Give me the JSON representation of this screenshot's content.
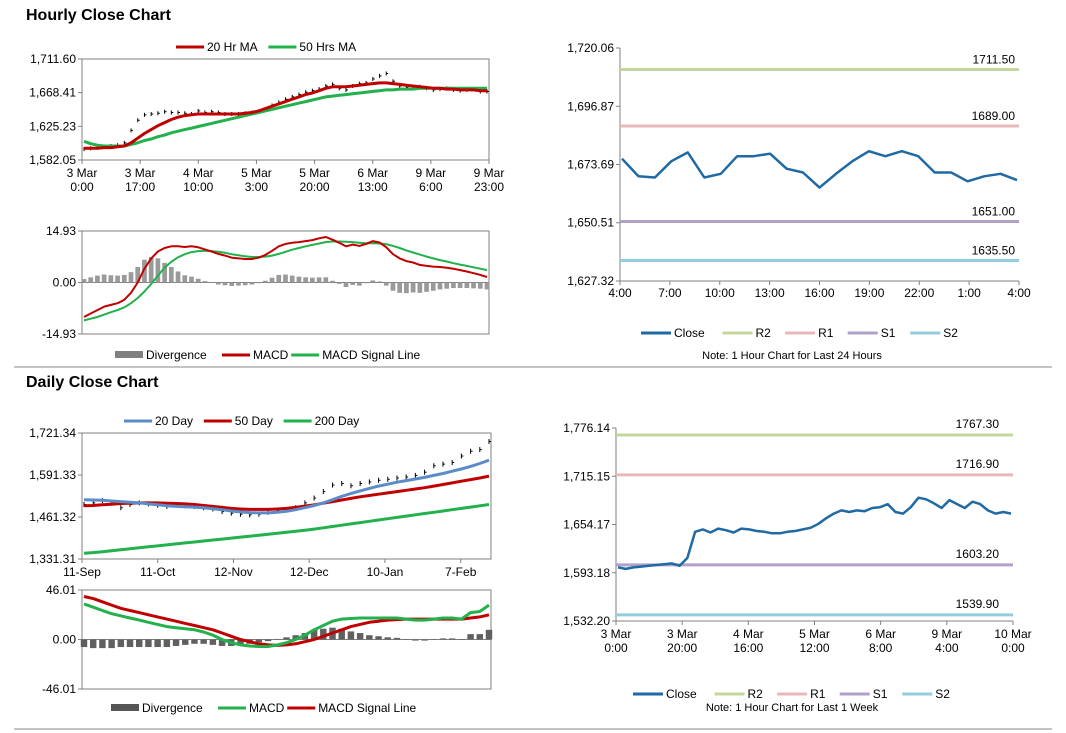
{
  "sections": {
    "hourly_title": "Hourly Close Chart",
    "daily_title": "Daily Close Chart"
  },
  "chart_data": [
    {
      "id": "hourly-price",
      "type": "line",
      "legend": [
        {
          "name": "20 Hr MA",
          "color": "#c00000"
        },
        {
          "name": "50 Hrs MA",
          "color": "#22b14c"
        }
      ],
      "yticks": [
        "1,711.60",
        "1,668.41",
        "1,625.23",
        "1,582.05"
      ],
      "ylim": [
        1582.05,
        1711.6
      ],
      "xticks": [
        [
          "3 Mar",
          "0:00"
        ],
        [
          "3 Mar",
          "17:00"
        ],
        [
          "4 Mar",
          "10:00"
        ],
        [
          "5 Mar",
          "3:00"
        ],
        [
          "5 Mar",
          "20:00"
        ],
        [
          "6 Mar",
          "13:00"
        ],
        [
          "9 Mar",
          "6:00"
        ],
        [
          "9 Mar",
          "23:00"
        ]
      ],
      "close": [
        1596,
        1597,
        1598,
        1599,
        1600,
        1601,
        1604,
        1620,
        1633,
        1640,
        1641,
        1642,
        1644,
        1643,
        1643,
        1642,
        1641,
        1645,
        1643,
        1644,
        1643,
        1641,
        1641,
        1641,
        1642,
        1643,
        1644,
        1646,
        1652,
        1656,
        1660,
        1663,
        1666,
        1669,
        1671,
        1673,
        1677,
        1679,
        1674,
        1672,
        1677,
        1680,
        1681,
        1686,
        1690,
        1693,
        1683,
        1677,
        1675,
        1674,
        1676,
        1674,
        1672,
        1673,
        1674,
        1672,
        1671,
        1672,
        1673,
        1670,
        1670
      ],
      "ma20": [
        1597,
        1597,
        1597,
        1598,
        1598,
        1599,
        1600,
        1604,
        1610,
        1616,
        1621,
        1626,
        1630,
        1634,
        1637,
        1639,
        1640,
        1641,
        1641,
        1641,
        1641,
        1641,
        1641,
        1641,
        1642,
        1643,
        1645,
        1648,
        1651,
        1654,
        1657,
        1660,
        1663,
        1666,
        1668,
        1671,
        1674,
        1676,
        1676,
        1676,
        1677,
        1678,
        1679,
        1680,
        1681,
        1681,
        1680,
        1679,
        1678,
        1677,
        1676,
        1675,
        1674,
        1674,
        1673,
        1673,
        1672,
        1672,
        1672,
        1671,
        1671
      ],
      "ma50": [
        1606,
        1603,
        1601,
        1600,
        1600,
        1600,
        1600,
        1602,
        1604,
        1607,
        1609,
        1612,
        1614,
        1617,
        1619,
        1621,
        1623,
        1625,
        1627,
        1629,
        1631,
        1633,
        1635,
        1637,
        1639,
        1641,
        1643,
        1645,
        1647,
        1649,
        1651,
        1653,
        1655,
        1657,
        1659,
        1661,
        1663,
        1664,
        1665,
        1666,
        1667,
        1668,
        1669,
        1670,
        1671,
        1672,
        1672,
        1673,
        1673,
        1673,
        1674,
        1674,
        1674,
        1674,
        1674,
        1674,
        1674,
        1674,
        1674,
        1674,
        1674
      ]
    },
    {
      "id": "hourly-macd",
      "type": "line",
      "legend": [
        {
          "name": "Divergence",
          "color": "#808080"
        },
        {
          "name": "MACD",
          "color": "#c00000"
        },
        {
          "name": "MACD Signal Line",
          "color": "#22b14c"
        }
      ],
      "yticks": [
        "14.93",
        "0.00",
        "-14.93"
      ],
      "ylim": [
        -14.93,
        14.93
      ],
      "macd": [
        -10,
        -9,
        -8,
        -7,
        -6.5,
        -6,
        -5,
        -3,
        0,
        4,
        7,
        9,
        10,
        10.5,
        10.5,
        10.3,
        10.5,
        10.2,
        9.6,
        9,
        8.3,
        7.8,
        7.2,
        7,
        6.8,
        6.8,
        7.2,
        8,
        9.2,
        10.5,
        11.2,
        11.5,
        11.7,
        12,
        12.3,
        12.8,
        13.2,
        12.4,
        11.5,
        10.5,
        11,
        10.6,
        11.2,
        12,
        11.6,
        10.2,
        8.2,
        7,
        6.2,
        5.8,
        5.1,
        4.8,
        4.6,
        4.5,
        4.3,
        4,
        3.6,
        3.2,
        2.7,
        2.2,
        1.6
      ],
      "signal": [
        -11,
        -10.5,
        -10,
        -9.3,
        -8.6,
        -8,
        -7.2,
        -6,
        -4.5,
        -2.6,
        -0.4,
        2,
        4.3,
        6,
        7.3,
        8.2,
        8.8,
        9.1,
        9.2,
        9.1,
        8.9,
        8.6,
        8.2,
        7.9,
        7.6,
        7.4,
        7.4,
        7.5,
        7.8,
        8.3,
        8.9,
        9.5,
        10,
        10.5,
        10.9,
        11.3,
        11.7,
        11.9,
        11.9,
        11.8,
        11.7,
        11.5,
        11.4,
        11.4,
        11.3,
        11.1,
        10.6,
        10,
        9.3,
        8.7,
        8.1,
        7.5,
        7,
        6.5,
        6.1,
        5.6,
        5.2,
        4.8,
        4.4,
        4,
        3.6
      ],
      "divergence_visible": true
    },
    {
      "id": "hourly-levels",
      "type": "line",
      "yticks": [
        "1,720.06",
        "1,696.87",
        "1,673.69",
        "1,650.51",
        "1,627.32"
      ],
      "ylim": [
        1627.32,
        1720.06
      ],
      "xticks": [
        "4:00",
        "7:00",
        "10:00",
        "13:00",
        "16:00",
        "19:00",
        "22:00",
        "1:00",
        "4:00"
      ],
      "close": [
        1676,
        1669,
        1668.5,
        1675,
        1678.5,
        1668.5,
        1670,
        1677,
        1677,
        1678,
        1672,
        1670.5,
        1664.5,
        1670,
        1675,
        1679,
        1677,
        1679,
        1677,
        1670.5,
        1670.5,
        1667,
        1669,
        1670,
        1667.5
      ],
      "levels": [
        {
          "name": "R2",
          "value": 1711.5,
          "label": "1711.50",
          "color": "#c4d79b"
        },
        {
          "name": "R1",
          "value": 1689.0,
          "label": "1689.00",
          "color": "#e6b9b8"
        },
        {
          "name": "S1",
          "value": 1651.0,
          "label": "1651.00",
          "color": "#b1a0c7"
        },
        {
          "name": "S2",
          "value": 1635.5,
          "label": "1635.50",
          "color": "#93cddd"
        }
      ],
      "legend": [
        {
          "name": "Close",
          "color": "#1f6aa5"
        },
        {
          "name": "R2",
          "color": "#c4d79b"
        },
        {
          "name": "R1",
          "color": "#e6b9b8"
        },
        {
          "name": "S1",
          "color": "#b1a0c7"
        },
        {
          "name": "S2",
          "color": "#93cddd"
        }
      ],
      "note": "Note: 1 Hour Chart for Last 24 Hours"
    },
    {
      "id": "daily-price",
      "type": "line",
      "legend": [
        {
          "name": "20 Day",
          "color": "#5b8cc8"
        },
        {
          "name": "50 Day",
          "color": "#c00000"
        },
        {
          "name": "200 Day",
          "color": "#22b14c"
        }
      ],
      "yticks": [
        "1,721.34",
        "1,591.33",
        "1,461.32",
        "1,331.31"
      ],
      "ylim": [
        1331.31,
        1721.34
      ],
      "xticks": [
        "11-Sep",
        "11-Oct",
        "12-Nov",
        "12-Dec",
        "10-Jan",
        "7-Feb"
      ],
      "close": [
        1500,
        1505,
        1512,
        1505,
        1490,
        1500,
        1505,
        1502,
        1498,
        1494,
        1500,
        1496,
        1494,
        1490,
        1486,
        1478,
        1473,
        1470,
        1468,
        1470,
        1476,
        1480,
        1484,
        1490,
        1505,
        1520,
        1540,
        1560,
        1565,
        1558,
        1565,
        1570,
        1575,
        1578,
        1582,
        1585,
        1590,
        1600,
        1620,
        1625,
        1630,
        1650,
        1665,
        1670,
        1695
      ],
      "ma20": [
        1515,
        1514,
        1513,
        1511,
        1509,
        1507,
        1505,
        1502,
        1499,
        1496,
        1494,
        1493,
        1492,
        1490,
        1487,
        1484,
        1480,
        1477,
        1475,
        1474,
        1474,
        1476,
        1479,
        1484,
        1490,
        1497,
        1505,
        1515,
        1525,
        1534,
        1542,
        1550,
        1557,
        1563,
        1569,
        1574,
        1579,
        1584,
        1590,
        1596,
        1603,
        1610,
        1618,
        1627,
        1637
      ],
      "ma50": [
        1496,
        1497,
        1499,
        1501,
        1503,
        1504,
        1505,
        1505,
        1505,
        1504,
        1503,
        1502,
        1500,
        1497,
        1494,
        1491,
        1488,
        1486,
        1485,
        1485,
        1485,
        1486,
        1488,
        1491,
        1495,
        1499,
        1504,
        1509,
        1514,
        1519,
        1524,
        1528,
        1532,
        1536,
        1540,
        1544,
        1548,
        1552,
        1557,
        1562,
        1567,
        1572,
        1577,
        1582,
        1588
      ],
      "ma200": [
        1349,
        1351,
        1354,
        1357,
        1360,
        1363,
        1366,
        1369,
        1372,
        1375,
        1378,
        1381,
        1384,
        1387,
        1390,
        1393,
        1396,
        1399,
        1402,
        1405,
        1408,
        1411,
        1414,
        1417,
        1420,
        1424,
        1428,
        1432,
        1436,
        1440,
        1444,
        1448,
        1452,
        1456,
        1460,
        1464,
        1468,
        1472,
        1476,
        1480,
        1484,
        1488,
        1492,
        1496,
        1500
      ]
    },
    {
      "id": "daily-macd",
      "type": "line",
      "legend": [
        {
          "name": "Divergence",
          "color": "#555555"
        },
        {
          "name": "MACD",
          "color": "#22b14c"
        },
        {
          "name": "MACD Signal Line",
          "color": "#c00000"
        }
      ],
      "yticks": [
        "46.01",
        "0.00",
        "-46.01"
      ],
      "ylim": [
        -46.01,
        46.01
      ],
      "macd": [
        33,
        30,
        27,
        24,
        22,
        20,
        18,
        16,
        14,
        12,
        11,
        10,
        9,
        7,
        4,
        0,
        -3,
        -5,
        -6,
        -6.5,
        -6.5,
        -5,
        -3,
        0,
        4,
        9,
        13,
        17,
        19,
        19.5,
        20,
        20,
        20,
        20,
        20,
        19,
        18,
        18,
        19,
        20,
        20,
        19,
        25,
        26,
        32
      ],
      "signal": [
        40,
        38,
        35,
        32,
        29,
        27,
        25,
        23,
        21,
        19,
        17,
        15,
        13,
        11,
        9,
        6,
        3,
        0,
        -2,
        -4,
        -5,
        -5.5,
        -5,
        -4,
        -2,
        0,
        3,
        6,
        9,
        12,
        14,
        16,
        17,
        18,
        18.5,
        19,
        19,
        19,
        19,
        19,
        19,
        19,
        20,
        21,
        23
      ],
      "divergence_visible": true
    },
    {
      "id": "daily-levels",
      "type": "line",
      "yticks": [
        "1,776.14",
        "1,715.15",
        "1,654.17",
        "1,593.18",
        "1,532.20"
      ],
      "ylim": [
        1532.2,
        1776.14
      ],
      "xticks": [
        [
          "3 Mar",
          "0:00"
        ],
        [
          "3 Mar",
          "20:00"
        ],
        [
          "4 Mar",
          "16:00"
        ],
        [
          "5 Mar",
          "12:00"
        ],
        [
          "6 Mar",
          "8:00"
        ],
        [
          "9 Mar",
          "4:00"
        ],
        [
          "10 Mar",
          "0:00"
        ]
      ],
      "close": [
        1600,
        1598,
        1600,
        1601,
        1602,
        1603,
        1604,
        1605,
        1602,
        1612,
        1645,
        1648,
        1644,
        1649,
        1647,
        1644,
        1649,
        1648,
        1646,
        1645,
        1643,
        1643,
        1645,
        1646,
        1648,
        1650,
        1655,
        1662,
        1668,
        1672,
        1670,
        1672,
        1671,
        1675,
        1676,
        1680,
        1670,
        1668,
        1676,
        1688,
        1686,
        1681,
        1675,
        1685,
        1680,
        1675,
        1683,
        1680,
        1672,
        1668,
        1670,
        1668
      ],
      "levels": [
        {
          "name": "R2",
          "value": 1767.3,
          "label": "1767.30",
          "color": "#c4d79b"
        },
        {
          "name": "R1",
          "value": 1716.9,
          "label": "1716.90",
          "color": "#e6b9b8"
        },
        {
          "name": "S1",
          "value": 1603.2,
          "label": "1603.20",
          "color": "#b1a0c7"
        },
        {
          "name": "S2",
          "value": 1539.9,
          "label": "1539.90",
          "color": "#93cddd"
        }
      ],
      "legend": [
        {
          "name": "Close",
          "color": "#1f6aa5"
        },
        {
          "name": "R2",
          "color": "#c4d79b"
        },
        {
          "name": "R1",
          "color": "#e6b9b8"
        },
        {
          "name": "S1",
          "color": "#b1a0c7"
        },
        {
          "name": "S2",
          "color": "#93cddd"
        }
      ],
      "note": "Note: 1 Hour Chart for Last 1 Week"
    }
  ]
}
